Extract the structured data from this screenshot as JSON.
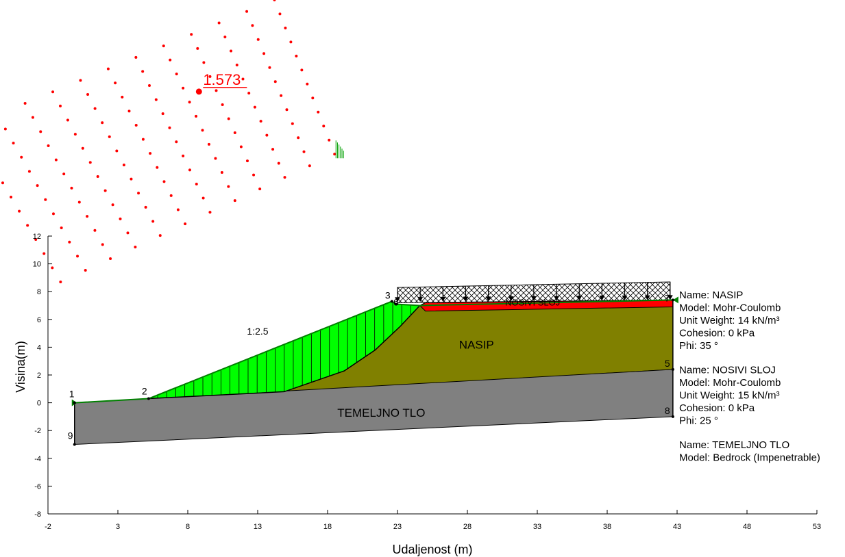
{
  "chart_data": {
    "type": "slope-stability-cross-section",
    "xlabel": "Udaljenost (m)",
    "ylabel": "Visina(m)",
    "xlim": [
      -2,
      53
    ],
    "ylim": [
      -8,
      12
    ],
    "x_ticks": [
      -2,
      3,
      8,
      13,
      18,
      23,
      28,
      33,
      38,
      43,
      48,
      53
    ],
    "y_ticks": [
      -8,
      -6,
      -4,
      -2,
      0,
      2,
      4,
      6,
      8,
      10,
      12
    ],
    "factor_of_safety": "1.573",
    "critical_center": [
      8.8,
      22.4
    ],
    "slope_label": "1:2.5",
    "grid_centers": {
      "corners": [
        [
          -7.6,
          19.9
        ],
        [
          14.2,
          29.0
        ],
        [
          18.5,
          17.9
        ],
        [
          -1.1,
          8.7
        ]
      ],
      "rows": 12,
      "cols": 12
    },
    "critical_slip_surface": [
      [
        5.2,
        0.3
      ],
      [
        14.9,
        0.8
      ],
      [
        19.2,
        2.3
      ],
      [
        21.4,
        3.8
      ],
      [
        23.2,
        5.5
      ],
      [
        24.6,
        7.0
      ]
    ],
    "materials": [
      {
        "name": "NASIP",
        "label": "NASIP",
        "color": "#808000",
        "polygon": [
          [
            14.9,
            0.8
          ],
          [
            19.2,
            2.3
          ],
          [
            21.4,
            3.8
          ],
          [
            23.2,
            5.5
          ],
          [
            24.6,
            7.0
          ],
          [
            25.0,
            7.2
          ],
          [
            42.7,
            7.4
          ],
          [
            42.7,
            2.4
          ]
        ],
        "label_pos": [
          27.4,
          3.9
        ]
      },
      {
        "name": "NOSIVI SLOJ",
        "label": "NOSIVI SLOJ",
        "color": "#ff0000",
        "polygon": [
          [
            24.6,
            7.0
          ],
          [
            25.0,
            7.2
          ],
          [
            42.7,
            7.4
          ],
          [
            42.7,
            6.9
          ],
          [
            25.0,
            6.6
          ]
        ],
        "label_pos": [
          30.7,
          7.0
        ]
      },
      {
        "name": "TEMELJNO TLO",
        "label": "TEMELJNO TLO",
        "color": "#808080",
        "polygon": [
          [
            -0.1,
            0.0
          ],
          [
            5.2,
            0.3
          ],
          [
            42.7,
            2.4
          ],
          [
            42.7,
            -1.0
          ],
          [
            -0.1,
            -3.0
          ]
        ],
        "label_pos": [
          18.7,
          -1.0
        ]
      }
    ],
    "material_properties": [
      [
        "Name: NASIP",
        "Model: Mohr-Coulomb",
        "Unit Weight: 14 kN/m³",
        "Cohesion: 0 kPa",
        "Phi: 35 °"
      ],
      [
        "Name: NOSIVI SLOJ",
        "Model: Mohr-Coulomb",
        "Unit Weight: 15 kN/m³",
        "Cohesion: 0 kPa",
        "Phi: 25 °"
      ],
      [
        "Name: TEMELJNO TLO",
        "Model: Bedrock (Impenetrable)"
      ]
    ],
    "points": [
      {
        "label": "1",
        "x": -0.1,
        "y": 0.0
      },
      {
        "label": "2",
        "x": 5.2,
        "y": 0.3
      },
      {
        "label": "3",
        "x": 22.6,
        "y": 7.3
      },
      {
        "label": "6",
        "x": 22.9,
        "y": 7.1
      },
      {
        "label": "7",
        "x": 42.7,
        "y": 7.4
      },
      {
        "label": "5",
        "x": 42.7,
        "y": 2.4
      },
      {
        "label": "8",
        "x": 42.7,
        "y": -1.0
      },
      {
        "label": "9",
        "x": -0.1,
        "y": -3.0
      }
    ],
    "surcharge_load": {
      "x_start": 23.0,
      "x_end": 42.5,
      "arrows": 13
    },
    "slice_zone": {
      "x_start": 5.2,
      "x_end": 24.6
    }
  },
  "colors": {
    "grid_point": "#ff0000",
    "slice_fill": "#00ff00",
    "fos_label": "#ff0000",
    "axis": "#000000"
  }
}
